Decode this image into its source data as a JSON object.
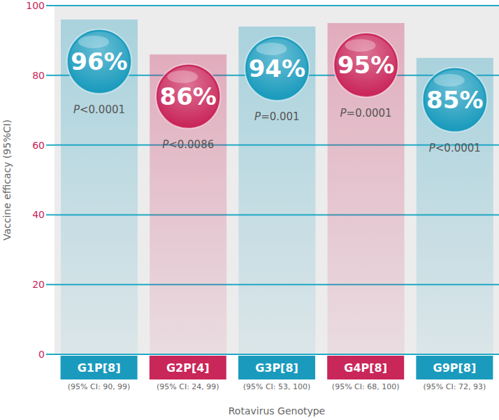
{
  "chart_data": {
    "type": "bar",
    "x_label": "Rotavirus Genotype",
    "y_label": "Vaccine efficacy (95%CI)",
    "categories": [
      "G1P[8]",
      "G2P[4]",
      "G3P[8]",
      "G4P[8]",
      "G9P[8]"
    ],
    "values": [
      96,
      86,
      94,
      95,
      85
    ],
    "value_labels": [
      "96%",
      "86%",
      "94%",
      "95%",
      "85%"
    ],
    "p_values": [
      "P<0.0001",
      "P<0.0086",
      "P=0.001",
      "P=0.0001",
      "P<0.0001"
    ],
    "ci_labels": [
      "(95% CI: 90, 99)",
      "(95% CI: 24, 99)",
      "(95% CI: 53, 100)",
      "(95% CI: 68, 100)",
      "(95% CI: 72, 93)"
    ],
    "colors": [
      "#1a9bbd",
      "#c9265a",
      "#1a9bbd",
      "#c9265a",
      "#1a9bbd"
    ],
    "ylim": [
      0,
      100
    ],
    "yticks": [
      0,
      20,
      40,
      60,
      80,
      100
    ],
    "grid": true,
    "data_labels": true
  }
}
